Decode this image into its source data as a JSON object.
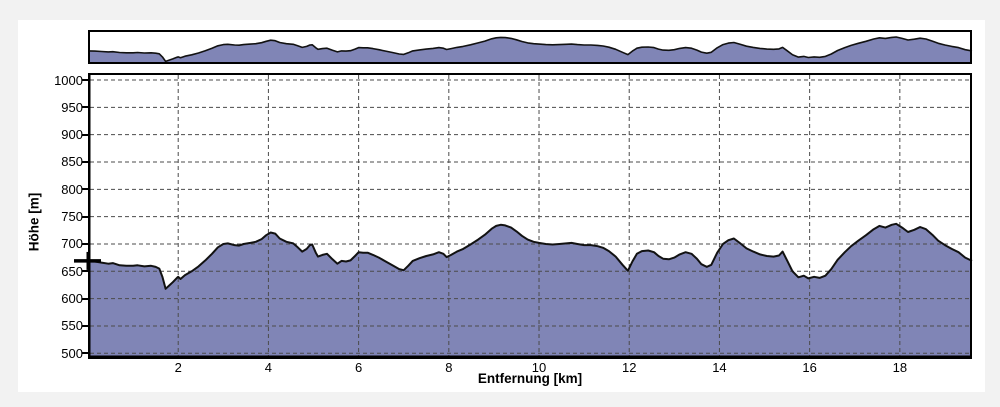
{
  "window": {
    "background": "#f2f2f2",
    "panel_background": "#ffffff"
  },
  "chart_data": {
    "type": "area",
    "title": "",
    "xlabel": "Entfernung [km]",
    "ylabel": "Höhe [m]",
    "xlim": [
      0,
      19.6
    ],
    "ylim": [
      500,
      1000
    ],
    "x_ticks": [
      2,
      4,
      6,
      8,
      10,
      12,
      14,
      16,
      18
    ],
    "y_ticks": [
      500,
      550,
      600,
      650,
      700,
      750,
      800,
      850,
      900,
      950,
      1000
    ],
    "grid": "dashed",
    "legend": "none",
    "overview_strip": true,
    "start_marker": {
      "km": 0,
      "elevation": 669
    },
    "colors": {
      "fill": "#8085b6",
      "line": "#121212",
      "grid": "#4b4b4b",
      "border": "#000000",
      "text": "#000000"
    },
    "profile": [
      [
        0,
        669
      ],
      [
        0.15,
        668
      ],
      [
        0.3,
        666
      ],
      [
        0.45,
        664
      ],
      [
        0.55,
        665
      ],
      [
        0.7,
        661
      ],
      [
        0.85,
        660
      ],
      [
        1.0,
        660
      ],
      [
        1.1,
        661
      ],
      [
        1.25,
        659
      ],
      [
        1.4,
        660
      ],
      [
        1.5,
        658
      ],
      [
        1.58,
        655
      ],
      [
        1.65,
        640
      ],
      [
        1.72,
        618
      ],
      [
        1.8,
        624
      ],
      [
        1.88,
        630
      ],
      [
        1.97,
        638
      ],
      [
        2.0,
        640
      ],
      [
        2.05,
        636
      ],
      [
        2.15,
        643
      ],
      [
        2.3,
        650
      ],
      [
        2.45,
        659
      ],
      [
        2.6,
        670
      ],
      [
        2.75,
        682
      ],
      [
        2.88,
        694
      ],
      [
        3.0,
        700
      ],
      [
        3.1,
        701
      ],
      [
        3.25,
        698
      ],
      [
        3.35,
        697
      ],
      [
        3.45,
        700
      ],
      [
        3.6,
        702
      ],
      [
        3.72,
        704
      ],
      [
        3.85,
        709
      ],
      [
        3.95,
        716
      ],
      [
        4.05,
        721
      ],
      [
        4.15,
        719
      ],
      [
        4.25,
        710
      ],
      [
        4.4,
        704
      ],
      [
        4.55,
        701
      ],
      [
        4.65,
        694
      ],
      [
        4.75,
        686
      ],
      [
        4.85,
        691
      ],
      [
        4.92,
        698
      ],
      [
        4.97,
        699
      ],
      [
        5.05,
        684
      ],
      [
        5.1,
        677
      ],
      [
        5.2,
        680
      ],
      [
        5.3,
        682
      ],
      [
        5.42,
        672
      ],
      [
        5.53,
        664
      ],
      [
        5.62,
        669
      ],
      [
        5.72,
        668
      ],
      [
        5.82,
        670
      ],
      [
        5.92,
        678
      ],
      [
        6.0,
        685
      ],
      [
        6.1,
        684
      ],
      [
        6.2,
        684
      ],
      [
        6.32,
        680
      ],
      [
        6.45,
        675
      ],
      [
        6.6,
        668
      ],
      [
        6.75,
        661
      ],
      [
        6.9,
        654
      ],
      [
        7.0,
        652
      ],
      [
        7.1,
        660
      ],
      [
        7.2,
        669
      ],
      [
        7.35,
        674
      ],
      [
        7.5,
        678
      ],
      [
        7.65,
        681
      ],
      [
        7.78,
        685
      ],
      [
        7.88,
        682
      ],
      [
        7.95,
        676
      ],
      [
        8.05,
        680
      ],
      [
        8.18,
        686
      ],
      [
        8.32,
        691
      ],
      [
        8.48,
        699
      ],
      [
        8.65,
        708
      ],
      [
        8.8,
        717
      ],
      [
        8.95,
        728
      ],
      [
        9.05,
        733
      ],
      [
        9.15,
        735
      ],
      [
        9.25,
        734
      ],
      [
        9.38,
        730
      ],
      [
        9.5,
        723
      ],
      [
        9.62,
        715
      ],
      [
        9.75,
        708
      ],
      [
        9.88,
        704
      ],
      [
        10.0,
        702
      ],
      [
        10.15,
        700
      ],
      [
        10.3,
        699
      ],
      [
        10.45,
        700
      ],
      [
        10.6,
        701
      ],
      [
        10.72,
        702
      ],
      [
        10.85,
        700
      ],
      [
        11.0,
        698
      ],
      [
        11.15,
        698
      ],
      [
        11.3,
        696
      ],
      [
        11.42,
        693
      ],
      [
        11.55,
        687
      ],
      [
        11.7,
        677
      ],
      [
        11.85,
        662
      ],
      [
        11.97,
        651
      ],
      [
        12.07,
        668
      ],
      [
        12.17,
        682
      ],
      [
        12.28,
        687
      ],
      [
        12.42,
        688
      ],
      [
        12.55,
        685
      ],
      [
        12.65,
        678
      ],
      [
        12.75,
        673
      ],
      [
        12.88,
        672
      ],
      [
        13.0,
        675
      ],
      [
        13.12,
        681
      ],
      [
        13.25,
        685
      ],
      [
        13.38,
        682
      ],
      [
        13.5,
        673
      ],
      [
        13.6,
        663
      ],
      [
        13.72,
        658
      ],
      [
        13.82,
        662
      ],
      [
        13.95,
        684
      ],
      [
        14.08,
        700
      ],
      [
        14.2,
        707
      ],
      [
        14.32,
        710
      ],
      [
        14.45,
        702
      ],
      [
        14.6,
        692
      ],
      [
        14.75,
        686
      ],
      [
        14.9,
        681
      ],
      [
        15.05,
        678
      ],
      [
        15.2,
        677
      ],
      [
        15.32,
        679
      ],
      [
        15.4,
        686
      ],
      [
        15.5,
        670
      ],
      [
        15.62,
        650
      ],
      [
        15.75,
        639
      ],
      [
        15.87,
        642
      ],
      [
        15.97,
        637
      ],
      [
        16.1,
        640
      ],
      [
        16.22,
        638
      ],
      [
        16.35,
        642
      ],
      [
        16.48,
        654
      ],
      [
        16.62,
        671
      ],
      [
        16.78,
        685
      ],
      [
        16.92,
        696
      ],
      [
        17.08,
        706
      ],
      [
        17.25,
        716
      ],
      [
        17.42,
        727
      ],
      [
        17.55,
        733
      ],
      [
        17.68,
        730
      ],
      [
        17.82,
        735
      ],
      [
        17.92,
        737
      ],
      [
        18.05,
        730
      ],
      [
        18.18,
        722
      ],
      [
        18.32,
        726
      ],
      [
        18.45,
        731
      ],
      [
        18.58,
        727
      ],
      [
        18.72,
        717
      ],
      [
        18.85,
        706
      ],
      [
        19.0,
        698
      ],
      [
        19.15,
        691
      ],
      [
        19.3,
        685
      ],
      [
        19.45,
        675
      ],
      [
        19.6,
        669
      ]
    ]
  }
}
